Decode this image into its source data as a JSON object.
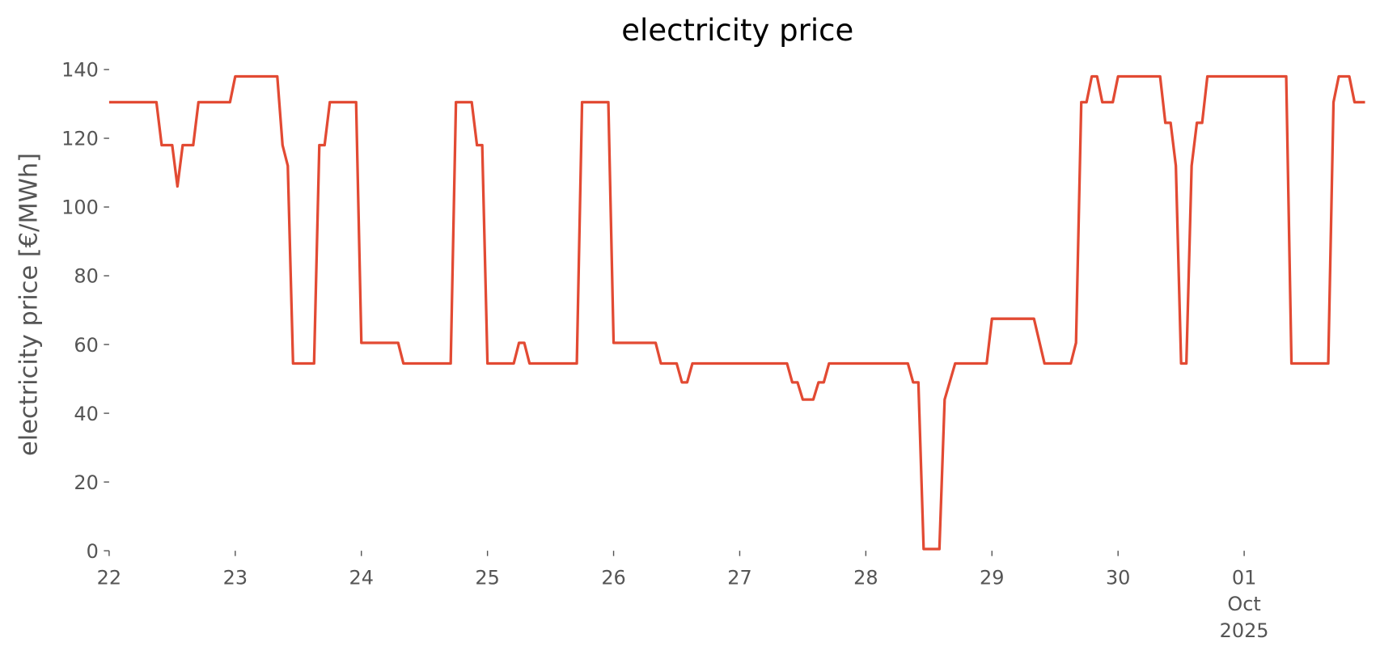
{
  "chart_data": {
    "type": "line",
    "title": "electricity price",
    "ylabel": "electricity price [€/MWh]",
    "x": [
      0,
      9,
      10,
      12,
      13,
      14,
      16,
      17,
      23,
      24,
      32,
      33,
      34,
      35,
      39,
      40,
      41,
      42,
      47,
      48,
      55,
      56,
      65,
      66,
      69,
      70,
      71,
      72,
      77,
      78,
      79,
      80,
      89,
      90,
      95,
      96,
      104,
      105,
      108,
      109,
      110,
      111,
      129,
      130,
      131,
      132,
      134,
      135,
      136,
      137,
      152,
      153,
      154,
      155,
      158,
      159,
      161,
      167,
      168,
      176,
      178,
      183,
      184,
      185,
      186,
      187,
      188,
      189,
      191,
      192,
      200,
      201,
      202,
      203,
      204,
      205,
      206,
      207,
      208,
      209,
      224,
      225,
      232,
      233,
      234,
      236,
      237,
      239
    ],
    "series": [
      {
        "name": "electricity price",
        "color": "#E24A33",
        "values": [
          130.5,
          130.5,
          118,
          118,
          106,
          118,
          118,
          130.5,
          130.5,
          138,
          138,
          118,
          112,
          54.5,
          54.5,
          118,
          118,
          130.5,
          130.5,
          60.5,
          60.5,
          54.5,
          54.5,
          130.5,
          130.5,
          118,
          118,
          54.5,
          54.5,
          60.5,
          60.5,
          54.5,
          54.5,
          130.5,
          130.5,
          60.5,
          60.5,
          54.5,
          54.5,
          49,
          49,
          54.5,
          54.5,
          49,
          49,
          44,
          44,
          49,
          49,
          54.5,
          54.5,
          49,
          49,
          0.5,
          0.5,
          44,
          54.5,
          54.5,
          67.5,
          67.5,
          54.5,
          54.5,
          60.5,
          130.5,
          130.5,
          138,
          138,
          130.5,
          130.5,
          138,
          138,
          124.5,
          124.5,
          112,
          54.5,
          54.5,
          112,
          124.5,
          124.5,
          138,
          138,
          54.5,
          54.5,
          130.5,
          138,
          138,
          130.5,
          130.5
        ]
      }
    ],
    "xlim": [
      0,
      239
    ],
    "xticks": [
      {
        "value": 0,
        "label": "22"
      },
      {
        "value": 24,
        "label": "23"
      },
      {
        "value": 48,
        "label": "24"
      },
      {
        "value": 72,
        "label": "25"
      },
      {
        "value": 96,
        "label": "26"
      },
      {
        "value": 120,
        "label": "27"
      },
      {
        "value": 144,
        "label": "28"
      },
      {
        "value": 168,
        "label": "29"
      },
      {
        "value": 192,
        "label": "30"
      },
      {
        "value": 216,
        "label": "01\nOct\n2025"
      }
    ],
    "ylim": [
      0,
      140
    ],
    "yticks": [
      0,
      20,
      40,
      60,
      80,
      100,
      120,
      140
    ],
    "grid": false
  }
}
